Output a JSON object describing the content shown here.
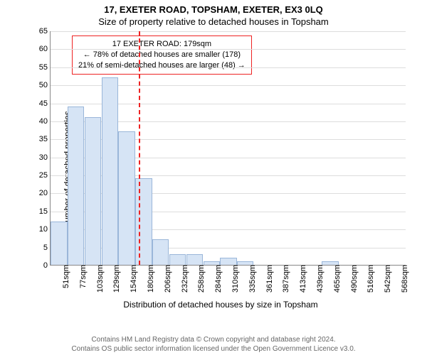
{
  "title_main": "17, EXETER ROAD, TOPSHAM, EXETER, EX3 0LQ",
  "title_sub": "Size of property relative to detached houses in Topsham",
  "y_axis_label": "Number of detached properties",
  "x_axis_label": "Distribution of detached houses by size in Topsham",
  "ylim": [
    0,
    65
  ],
  "ytick_step": 5,
  "x_categories": [
    "51sqm",
    "77sqm",
    "103sqm",
    "129sqm",
    "154sqm",
    "180sqm",
    "206sqm",
    "232sqm",
    "258sqm",
    "284sqm",
    "310sqm",
    "335sqm",
    "361sqm",
    "387sqm",
    "413sqm",
    "439sqm",
    "465sqm",
    "490sqm",
    "516sqm",
    "542sqm",
    "568sqm"
  ],
  "bar_values": [
    12,
    44,
    41,
    52,
    37,
    24,
    7,
    3,
    3,
    1,
    2,
    1,
    0,
    0,
    0,
    0,
    1,
    0,
    0,
    0,
    0
  ],
  "bar_fill": "#d6e4f5",
  "bar_stroke": "#9ab6d9",
  "grid_color": "#dddddd",
  "axis_color": "#888888",
  "background_color": "#ffffff",
  "marker": {
    "position_value": 179,
    "x_range": [
      51,
      568
    ],
    "color": "#ee2222",
    "box": {
      "line1": "17 EXETER ROAD: 179sqm",
      "line2": "← 78% of detached houses are smaller (178)",
      "line3": "21% of semi-detached houses are larger (48) →"
    }
  },
  "footer_line1": "Contains HM Land Registry data © Crown copyright and database right 2024.",
  "footer_line2": "Contains OS public sector information licensed under the Open Government Licence v3.0.",
  "fonts": {
    "title": 13,
    "axis_label": 12,
    "tick": 11,
    "info": 11,
    "footer": 10
  }
}
